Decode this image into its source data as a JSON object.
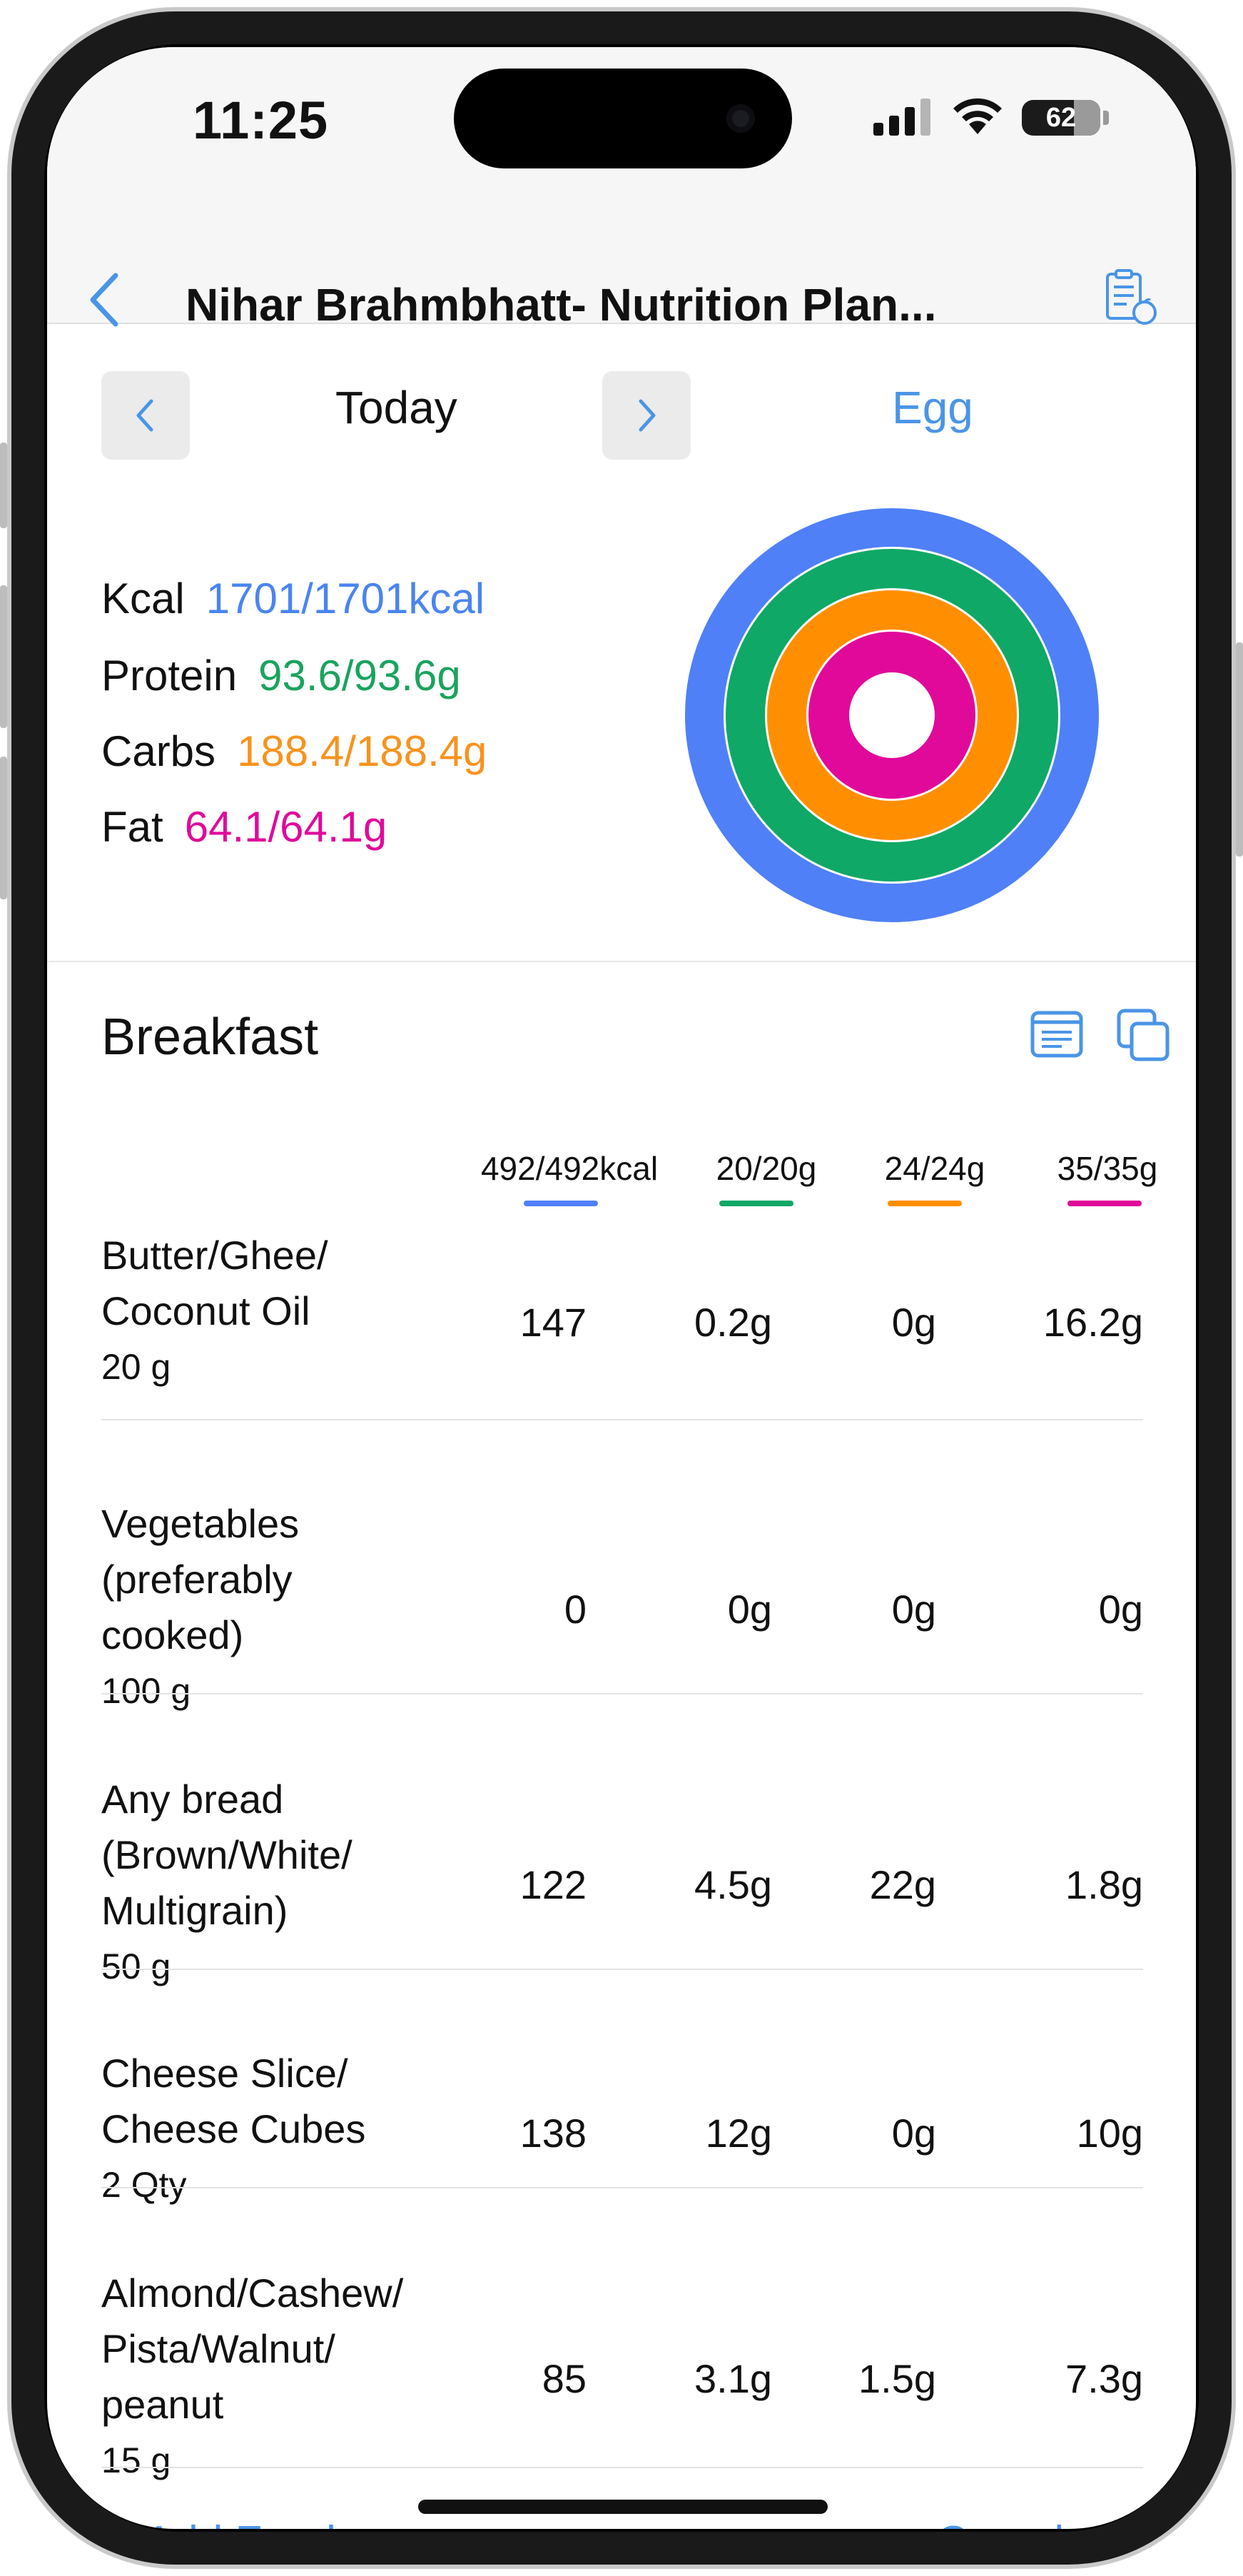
{
  "status": {
    "time": "11:25",
    "battery": "62"
  },
  "nav": {
    "title": "Nihar Brahmbhatt- Nutrition Plan..."
  },
  "day": {
    "label": "Today",
    "diet": "Egg"
  },
  "macros": [
    {
      "label": "Kcal",
      "value": "1701/1701kcal",
      "color": "#4a84f0"
    },
    {
      "label": "Protein",
      "value": "93.6/93.6g",
      "color": "#1aa35e"
    },
    {
      "label": "Carbs",
      "value": "188.4/188.4g",
      "color": "#f7931e"
    },
    {
      "label": "Fat",
      "value": "64.1/64.1g",
      "color": "#e0099a"
    }
  ],
  "colors": {
    "kcal": "#4f80f7",
    "protein": "#0fa866",
    "carbs": "#ff8f00",
    "fat": "#e0099a",
    "accent": "#4a95e6"
  },
  "meal": {
    "title": "Breakfast",
    "totals": [
      "492/492kcal",
      "20/20g",
      "24/24g",
      "35/35g"
    ],
    "items": [
      {
        "name": "Butter/Ghee/ Coconut Oil",
        "qty": "20 g",
        "kcal": "147",
        "protein": "0.2g",
        "carbs": "0g",
        "fat": "16.2g"
      },
      {
        "name": "Vegetables (preferably cooked)",
        "qty": "100 g",
        "kcal": "0",
        "protein": "0g",
        "carbs": "0g",
        "fat": "0g"
      },
      {
        "name": "Any bread (Brown/White/ Multigrain)",
        "qty": "50 g",
        "kcal": "122",
        "protein": "4.5g",
        "carbs": "22g",
        "fat": "1.8g"
      },
      {
        "name": "Cheese Slice/ Cheese Cubes",
        "qty": "2 Qty",
        "kcal": "138",
        "protein": "12g",
        "carbs": "0g",
        "fat": "10g"
      },
      {
        "name": "Almond/Cashew/ Pista/Walnut/ peanut",
        "qty": "15 g",
        "kcal": "85",
        "protein": "3.1g",
        "carbs": "1.5g",
        "fat": "7.3g"
      }
    ]
  },
  "footer": {
    "add": "Add Food",
    "complete": "Complete"
  }
}
